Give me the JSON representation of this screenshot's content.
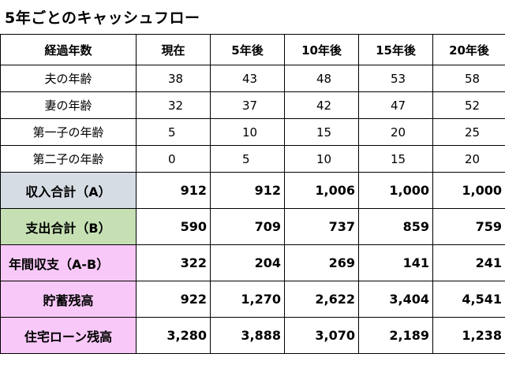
{
  "title": "5年ごとのキャッシュフロー",
  "colors": {
    "income_label_bg": "#d6dce4",
    "expense_label_bg": "#c6e0b4",
    "balance_label_bg": "#f8c8f8"
  },
  "table": {
    "header": [
      "経過年数",
      "現在",
      "5年後",
      "10年後",
      "15年後",
      "20年後"
    ],
    "info_rows": [
      {
        "label": "夫の年齢",
        "values": [
          "38",
          "43",
          "48",
          "53",
          "58"
        ]
      },
      {
        "label": "妻の年齢",
        "values": [
          "32",
          "37",
          "42",
          "47",
          "52"
        ]
      },
      {
        "label": "第一子の年齢",
        "values": [
          "5",
          "10",
          "15",
          "20",
          "25"
        ]
      },
      {
        "label": "第二子の年齢",
        "values": [
          "0",
          "5",
          "10",
          "15",
          "20"
        ]
      }
    ],
    "summary_rows": [
      {
        "label": "収入合計（A）",
        "values": [
          "912",
          "912",
          "1,006",
          "1,000",
          "1,000"
        ]
      },
      {
        "label": "支出合計（B）",
        "values": [
          "590",
          "709",
          "737",
          "859",
          "759"
        ]
      },
      {
        "label": "年間収支（A-B）",
        "values": [
          "322",
          "204",
          "269",
          "141",
          "241"
        ]
      },
      {
        "label": "貯蓄残高",
        "values": [
          "922",
          "1,270",
          "2,622",
          "3,404",
          "4,541"
        ]
      },
      {
        "label": "住宅ローン残高",
        "values": [
          "3,280",
          "3,888",
          "3,070",
          "2,189",
          "1,238"
        ]
      }
    ]
  }
}
